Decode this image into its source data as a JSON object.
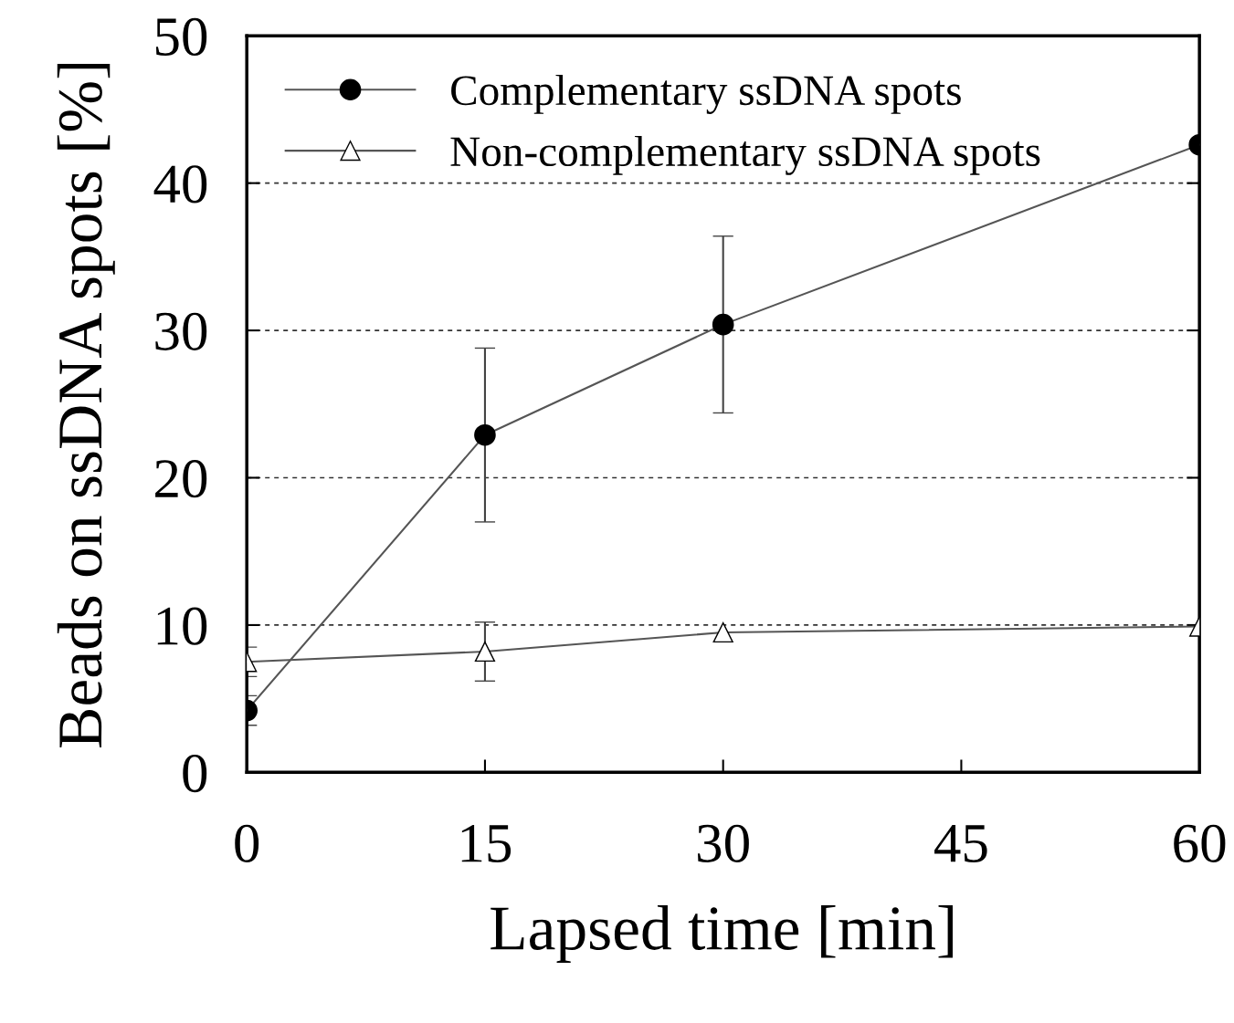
{
  "chart_data": {
    "type": "line",
    "xlabel": "Lapsed time [min]",
    "ylabel": "Beads on ssDNA spots [%]",
    "x": [
      0,
      15,
      30,
      60
    ],
    "series": [
      {
        "name": "Complementary ssDNA spots",
        "color": "#000000",
        "marker": "circle",
        "values": [
          4.2,
          22.9,
          30.4,
          42.6
        ],
        "errors": [
          1.0,
          5.9,
          6.0,
          null
        ]
      },
      {
        "name": "Non-complementary ssDNA spots",
        "color": "#000000",
        "marker": "triangle",
        "values": [
          7.5,
          8.2,
          9.5,
          9.9
        ],
        "errors": [
          1.0,
          2.0,
          null,
          null
        ]
      }
    ],
    "xlim": [
      0,
      60
    ],
    "xticks": [
      0,
      15,
      30,
      45,
      60
    ],
    "ylim": [
      0,
      50
    ],
    "yticks": [
      0,
      10,
      20,
      30,
      40,
      50
    ],
    "grid": "y",
    "legend": "top left",
    "line_style": "solid"
  }
}
